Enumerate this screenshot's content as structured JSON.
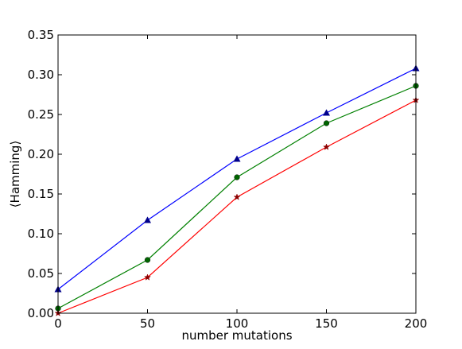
{
  "chart_data": {
    "type": "line",
    "title": "",
    "xlabel": "number mutations",
    "ylabel": "⟨Hamming⟩",
    "xlim": [
      0,
      200
    ],
    "ylim": [
      0,
      0.35
    ],
    "x_ticks": [
      0,
      50,
      100,
      150,
      200
    ],
    "x_tick_labels": [
      "0",
      "50",
      "100",
      "150",
      "200"
    ],
    "y_ticks": [
      0,
      0.05,
      0.1,
      0.15,
      0.2,
      0.25,
      0.3,
      0.35
    ],
    "y_tick_labels": [
      "0.00",
      "0.05",
      "0.10",
      "0.15",
      "0.20",
      "0.25",
      "0.30",
      "0.35"
    ],
    "grid": false,
    "x": [
      0,
      50,
      100,
      150,
      200
    ],
    "series": [
      {
        "values": [
          0.03,
          0.117,
          0.194,
          0.252,
          0.308
        ],
        "color": "#0000ff",
        "marker": "triangle",
        "marker_color": "#00008b"
      },
      {
        "values": [
          0.006,
          0.067,
          0.171,
          0.239,
          0.286
        ],
        "color": "#008000",
        "marker": "circle",
        "marker_color": "#006400"
      },
      {
        "values": [
          0.0,
          0.045,
          0.146,
          0.209,
          0.268
        ],
        "color": "#ff0000",
        "marker": "star",
        "marker_color": "#8b0000"
      }
    ]
  }
}
